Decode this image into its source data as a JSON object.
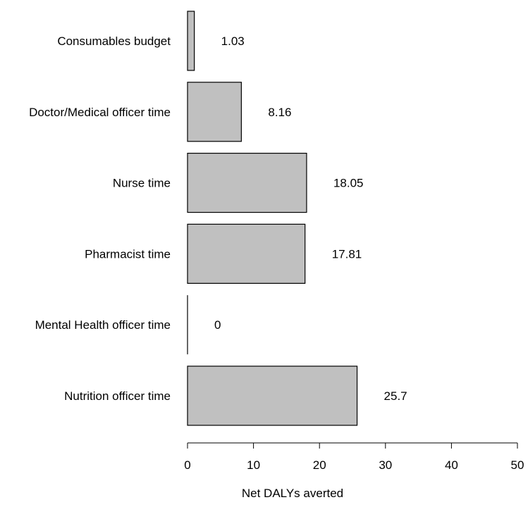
{
  "chart_data": {
    "type": "bar",
    "orientation": "horizontal",
    "title": "",
    "xlabel": "Net DALYs averted",
    "ylabel": "",
    "xlim": [
      0,
      50
    ],
    "x_ticks": [
      0,
      10,
      20,
      30,
      40,
      50
    ],
    "grid": false,
    "legend": "none",
    "bar_color": "#c0c0c0",
    "bar_edge_color": "#000000",
    "categories": [
      "Consumables budget",
      "Doctor/Medical officer time",
      "Nurse time",
      "Pharmacist time",
      "Mental Health officer time",
      "Nutrition officer time"
    ],
    "values": [
      1.03,
      8.16,
      18.05,
      17.81,
      0,
      25.7
    ],
    "value_labels": [
      "1.03",
      "8.16",
      "18.05",
      "17.81",
      "0",
      "25.7"
    ]
  }
}
